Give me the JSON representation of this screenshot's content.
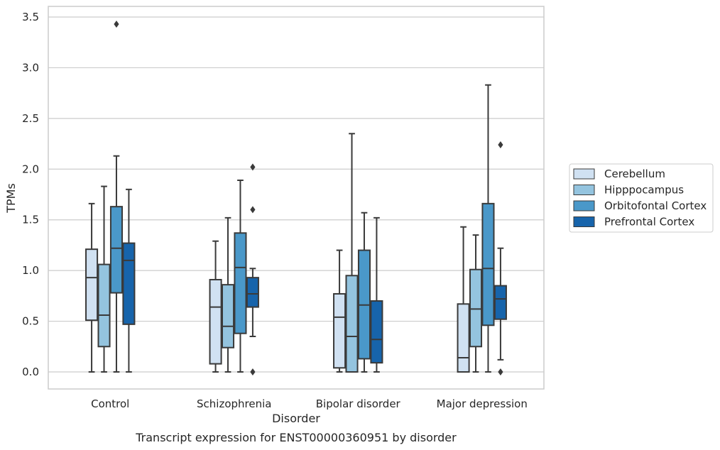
{
  "chart_data": {
    "type": "boxplot",
    "title": "",
    "caption": "Transcript expression for ENST00000360951 by disorder",
    "xlabel": "Disorder",
    "ylabel": "TPMs",
    "ylim": [
      -0.16,
      3.6
    ],
    "yticks": [
      "0.0",
      "0.5",
      "1.0",
      "1.5",
      "2.0",
      "2.5",
      "3.0",
      "3.5"
    ],
    "ytick_values": [
      0,
      0.5,
      1.0,
      1.5,
      2.0,
      2.5,
      3.0,
      3.5
    ],
    "grid": "horizontal",
    "legend_placement": "center-right outside",
    "categories": [
      "Control",
      "Schizophrenia",
      "Bipolar disorder",
      "Major depression"
    ],
    "series": [
      {
        "name": "Cerebellum",
        "color": "#d0e1f2",
        "boxes": [
          {
            "whislo": 0.0,
            "q1": 0.51,
            "med": 0.93,
            "q3": 1.21,
            "whishi": 1.66,
            "fliers": []
          },
          {
            "whislo": 0.0,
            "q1": 0.08,
            "med": 0.64,
            "q3": 0.91,
            "whishi": 1.29,
            "fliers": []
          },
          {
            "whislo": 0.0,
            "q1": 0.04,
            "med": 0.54,
            "q3": 0.77,
            "whishi": 1.2,
            "fliers": []
          },
          {
            "whislo": 0.0,
            "q1": 0.0,
            "med": 0.14,
            "q3": 0.67,
            "whishi": 1.43,
            "fliers": []
          }
        ]
      },
      {
        "name": "Hipppocampus",
        "color": "#94c4df",
        "boxes": [
          {
            "whislo": 0.0,
            "q1": 0.25,
            "med": 0.56,
            "q3": 1.06,
            "whishi": 1.83,
            "fliers": []
          },
          {
            "whislo": 0.0,
            "q1": 0.24,
            "med": 0.45,
            "q3": 0.86,
            "whishi": 1.52,
            "fliers": []
          },
          {
            "whislo": 0.0,
            "q1": 0.0,
            "med": 0.35,
            "q3": 0.95,
            "whishi": 2.35,
            "fliers": []
          },
          {
            "whislo": 0.0,
            "q1": 0.25,
            "med": 0.62,
            "q3": 1.01,
            "whishi": 1.35,
            "fliers": []
          }
        ]
      },
      {
        "name": "Orbitofontal Cortex",
        "color": "#4a98c9",
        "boxes": [
          {
            "whislo": 0.0,
            "q1": 0.78,
            "med": 1.22,
            "q3": 1.63,
            "whishi": 2.13,
            "fliers": [
              3.43
            ]
          },
          {
            "whislo": 0.0,
            "q1": 0.38,
            "med": 1.03,
            "q3": 1.37,
            "whishi": 1.89,
            "fliers": []
          },
          {
            "whislo": 0.0,
            "q1": 0.13,
            "med": 0.66,
            "q3": 1.2,
            "whishi": 1.57,
            "fliers": []
          },
          {
            "whislo": 0.0,
            "q1": 0.46,
            "med": 1.02,
            "q3": 1.66,
            "whishi": 2.83,
            "fliers": []
          }
        ]
      },
      {
        "name": "Prefrontal Cortex",
        "color": "#1764ab",
        "boxes": [
          {
            "whislo": 0.0,
            "q1": 0.47,
            "med": 1.1,
            "q3": 1.27,
            "whishi": 1.8,
            "fliers": []
          },
          {
            "whislo": 0.35,
            "q1": 0.64,
            "med": 0.77,
            "q3": 0.93,
            "whishi": 1.02,
            "fliers": [
              2.02,
              1.6,
              0.0
            ]
          },
          {
            "whislo": 0.0,
            "q1": 0.09,
            "med": 0.32,
            "q3": 0.7,
            "whishi": 1.52,
            "fliers": []
          },
          {
            "whislo": 0.12,
            "q1": 0.52,
            "med": 0.72,
            "q3": 0.85,
            "whishi": 1.22,
            "fliers": [
              2.24,
              0.0
            ]
          }
        ]
      }
    ]
  }
}
